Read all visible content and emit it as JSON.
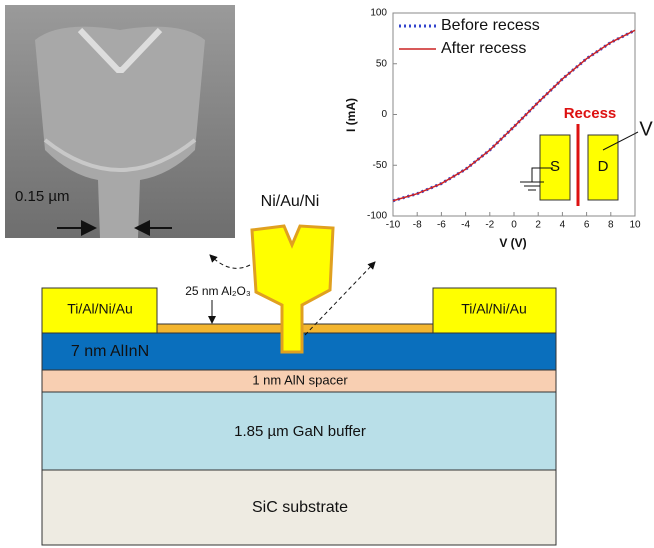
{
  "chart_data": {
    "type": "line",
    "x_label": "V (V)",
    "y_label": "I (mA)",
    "x": [
      -10,
      -8,
      -6,
      -4,
      -2,
      0,
      2,
      4,
      6,
      8,
      10
    ],
    "series": [
      {
        "name": "Before recess",
        "color": "#3344cc",
        "style": "dotted",
        "values": [
          -85,
          -78,
          -68,
          -54,
          -35,
          -12,
          12,
          35,
          55,
          71,
          83
        ]
      },
      {
        "name": "After recess",
        "color": "#cc2222",
        "style": "solid",
        "values": [
          -85,
          -78,
          -68,
          -54,
          -35,
          -12,
          12,
          35,
          55,
          71,
          83
        ]
      }
    ],
    "xlim": [
      -10,
      10
    ],
    "xticks": [
      -10,
      -8,
      -6,
      -4,
      -2,
      0,
      2,
      4,
      6,
      8,
      10
    ],
    "ylim": [
      -100,
      100
    ],
    "yticks": [
      -100,
      -50,
      0,
      50,
      100
    ],
    "grid": false
  },
  "inset": {
    "recess": "Recess",
    "source": "S",
    "drain": "D",
    "voltage": "V"
  },
  "sem": {
    "scale": "0.15 µm"
  },
  "diagram": {
    "gate": "Ni/Au/Ni",
    "left_contact": "Ti/Al/Ni/Au",
    "right_contact": "Ti/Al/Ni/Au",
    "oxide": "25 nm Al₂O₃",
    "barrier": "7 nm AlInN",
    "spacer": "1 nm AlN spacer",
    "buffer": "1.85 µm GaN buffer",
    "substrate": "SiC substrate"
  }
}
